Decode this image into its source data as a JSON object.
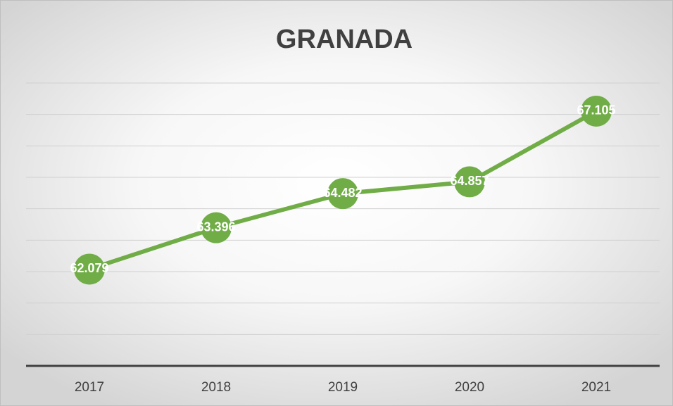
{
  "chart_data": {
    "type": "line",
    "title": "GRANADA",
    "categories": [
      "2017",
      "2018",
      "2019",
      "2020",
      "2021"
    ],
    "values": [
      62.079,
      63.396,
      64.482,
      64.857,
      67.105
    ],
    "value_labels": [
      "62.079",
      "63.396",
      "64.482",
      "64.857",
      "67.105"
    ],
    "color": "#70ad47",
    "ylim": [
      59,
      68
    ],
    "yticks": [
      59,
      60,
      61,
      62,
      63,
      64,
      65,
      66,
      67,
      68
    ],
    "grid": true
  }
}
